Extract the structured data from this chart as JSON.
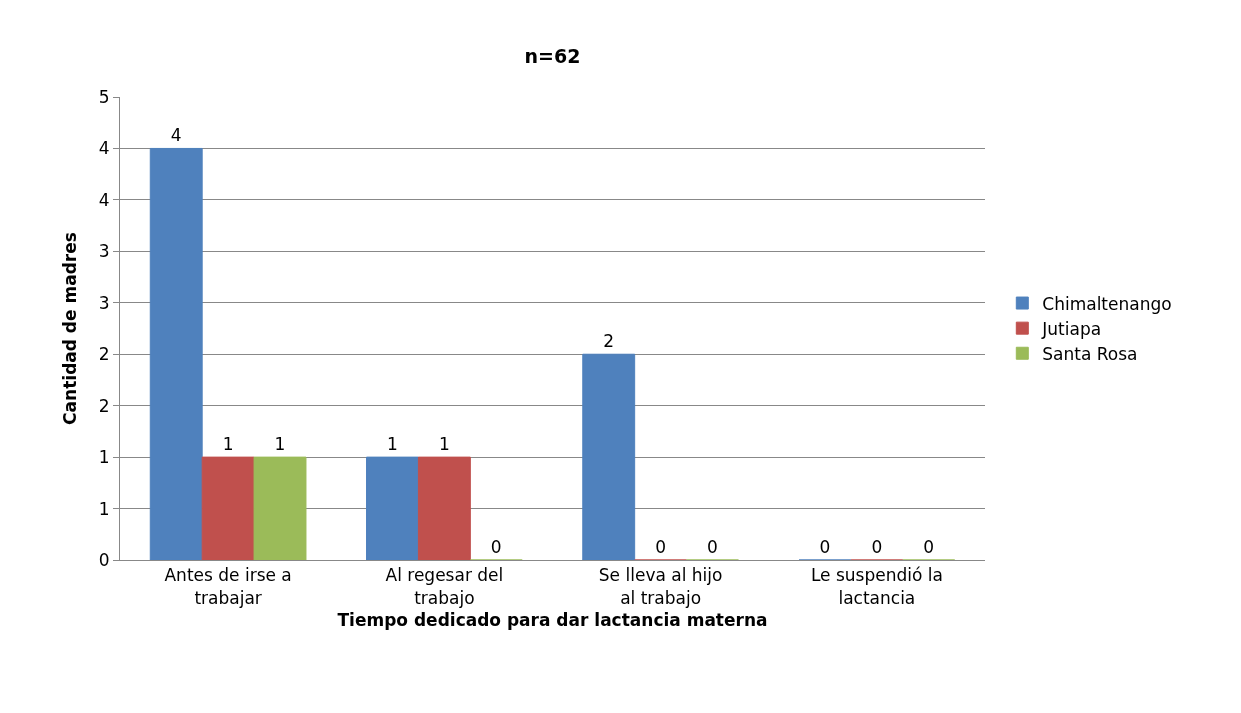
{
  "chart_data": {
    "type": "bar",
    "title": "n=62",
    "xlabel": "Tiempo dedicado para dar lactancia materna",
    "ylabel": "Cantidad de madres",
    "categories": [
      "Antes de irse a trabajar",
      "Al regesar del trabajo",
      "Se lleva al hijo al trabajo",
      "Le suspendió la lactancia"
    ],
    "series": [
      {
        "name": "Chimaltenango",
        "color": "#4f81bd",
        "values": [
          4,
          1,
          2,
          0
        ]
      },
      {
        "name": "Jutiapa",
        "color": "#c0504d",
        "values": [
          1,
          1,
          0,
          0
        ]
      },
      {
        "name": "Santa Rosa",
        "color": "#9bbb59",
        "values": [
          1,
          0,
          0,
          0
        ]
      }
    ],
    "ylim": [
      0,
      4.5
    ],
    "yticks": [
      0,
      {
        "value": 0.5,
        "label": "1"
      },
      1,
      {
        "value": 1.5,
        "label": "2"
      },
      2,
      {
        "value": 2.5,
        "label": "3"
      },
      3,
      {
        "value": 3.5,
        "label": "4"
      },
      4,
      {
        "value": 4.5,
        "label": "5"
      }
    ],
    "grid": "y",
    "legend": "right",
    "data_labels": true
  }
}
